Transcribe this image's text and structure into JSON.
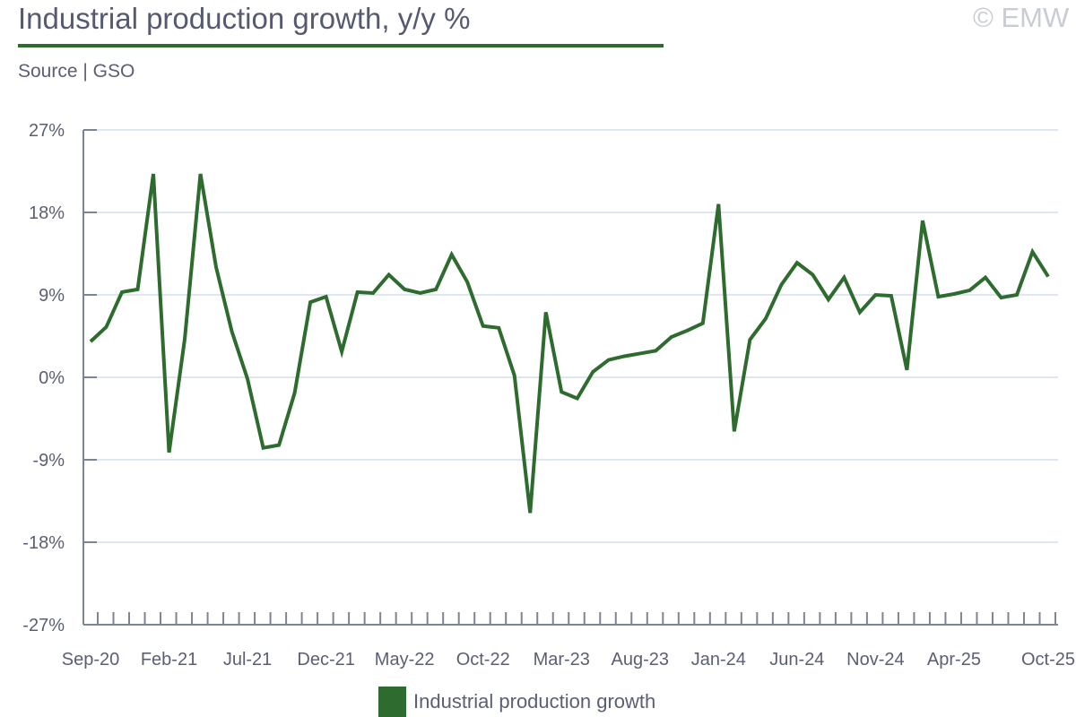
{
  "header": {
    "title": "Industrial production growth, y/y %",
    "source": "Source | GSO",
    "brand": "© EMW"
  },
  "colors": {
    "series": "#2e6b2e",
    "grid": "#dde6f1",
    "axis": "#7d8496"
  },
  "chart_data": {
    "type": "line",
    "title": "Industrial production growth, y/y %",
    "xlabel": "",
    "ylabel": "",
    "ylim": [
      -27,
      27
    ],
    "yticks": [
      27,
      18,
      9,
      0,
      -9,
      -18,
      -27
    ],
    "ytick_labels": [
      "27%",
      "18%",
      "9%",
      "0%",
      "-9%",
      "-18%",
      "-27%"
    ],
    "xtick_labels": [
      "Sep-20",
      "Feb-21",
      "Jul-21",
      "Dec-21",
      "May-22",
      "Oct-22",
      "Mar-23",
      "Aug-23",
      "Jan-24",
      "Jun-24",
      "Nov-24",
      "Apr-25",
      "Oct-25"
    ],
    "xtick_index": [
      0,
      5,
      10,
      15,
      20,
      25,
      30,
      35,
      40,
      45,
      50,
      55,
      61
    ],
    "grid": true,
    "legend_position": "bottom",
    "series": [
      {
        "name": "Industrial production growth",
        "values": [
          3.9,
          5.5,
          9.3,
          9.6,
          22.2,
          -8.2,
          4.2,
          22.2,
          12.0,
          5.0,
          -0.2,
          -7.7,
          -7.4,
          -1.7,
          8.2,
          8.8,
          2.8,
          9.3,
          9.2,
          11.2,
          9.6,
          9.2,
          9.6,
          13.4,
          10.4,
          5.6,
          5.4,
          0.2,
          -14.8,
          7.1,
          -1.6,
          -2.3,
          0.6,
          1.9,
          2.3,
          2.6,
          2.9,
          4.4,
          5.1,
          5.9,
          18.9,
          -5.9,
          4.1,
          6.4,
          10.1,
          12.5,
          11.2,
          8.5,
          10.9,
          7.1,
          9.0,
          8.9,
          0.8,
          17.1,
          8.8,
          9.1,
          9.5,
          10.9,
          8.7,
          9.0,
          13.7,
          11.0
        ]
      }
    ]
  }
}
